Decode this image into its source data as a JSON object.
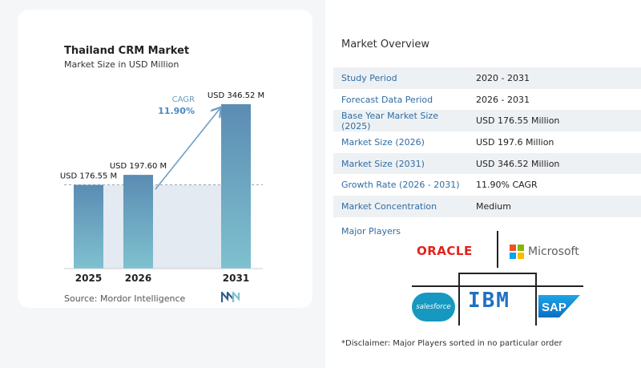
{
  "chart_data": {
    "type": "bar",
    "title": "Thailand CRM Market",
    "subtitle": "Market Size in USD Million",
    "categories": [
      "2025",
      "2026",
      "2031"
    ],
    "values": [
      176.55,
      197.6,
      346.52
    ],
    "data_labels": [
      "USD 176.55 M",
      "USD 197.60 M",
      "USD 346.52 M"
    ],
    "annotation": {
      "label": "CAGR",
      "value": "11.90%"
    },
    "colors": {
      "bar_top": "#5b8cb3",
      "bar_bottom": "#7fc1cf",
      "shade": "#e3eaf1",
      "arrow": "#6b9bc3",
      "cagr_label": "#6b9bc3",
      "cagr_value": "#4a8ac4"
    }
  },
  "source": "Source:  Mordor Intelligence",
  "overview": {
    "title": "Market Overview",
    "rows": [
      {
        "label": "Study Period",
        "value": "2020 - 2031"
      },
      {
        "label": "Forecast Data Period",
        "value": "2026 - 2031"
      },
      {
        "label": "Base Year Market Size (2025)",
        "value": "USD 176.55 Million"
      },
      {
        "label": "Market Size (2026)",
        "value": "USD 197.6 Million"
      },
      {
        "label": "Market Size (2031)",
        "value": "USD 346.52 Million"
      },
      {
        "label": "Growth Rate (2026 - 2031)",
        "value": "11.90% CAGR"
      },
      {
        "label": "Market Concentration",
        "value": "Medium"
      }
    ]
  },
  "players": {
    "title": "Major Players",
    "logos": {
      "oracle": "ORACLE",
      "microsoft": "Microsoft",
      "salesforce": "salesforce",
      "ibm": "IBM",
      "sap": "SAP"
    }
  },
  "disclaimer": "*Disclaimer: Major Players sorted in no particular order"
}
